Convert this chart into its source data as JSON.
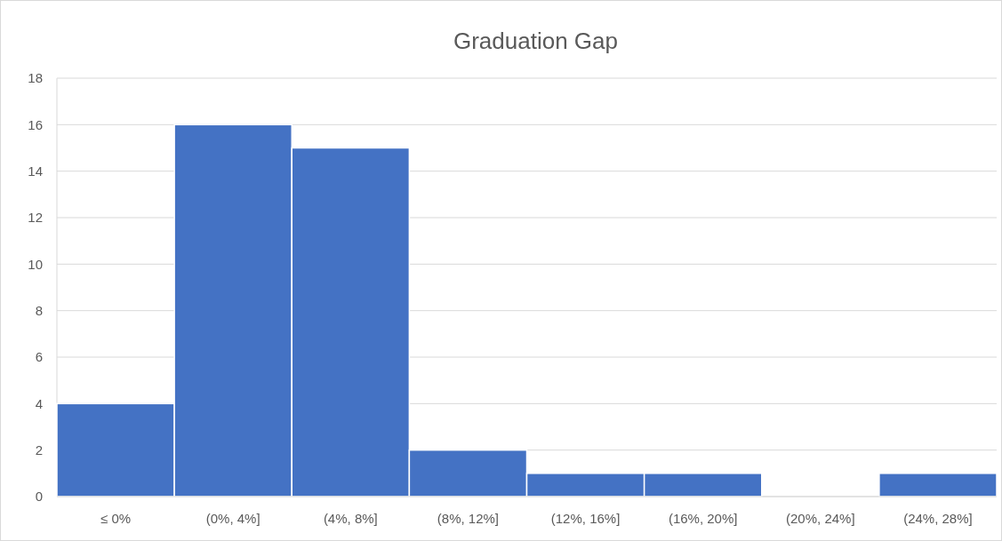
{
  "chart_data": {
    "type": "bar",
    "title": "Graduation Gap",
    "categories": [
      "≤ 0%",
      "(0%, 4%]",
      "(4%, 8%]",
      "(8%, 12%]",
      "(12%, 16%]",
      "(16%, 20%]",
      "(20%, 24%]",
      "(24%, 28%]"
    ],
    "values": [
      4,
      16,
      15,
      2,
      1,
      1,
      0,
      1
    ],
    "color": "#4472c4",
    "ylim": [
      0,
      18
    ],
    "yticks": [
      0,
      2,
      4,
      6,
      8,
      10,
      12,
      14,
      16,
      18
    ],
    "grid": "y"
  }
}
